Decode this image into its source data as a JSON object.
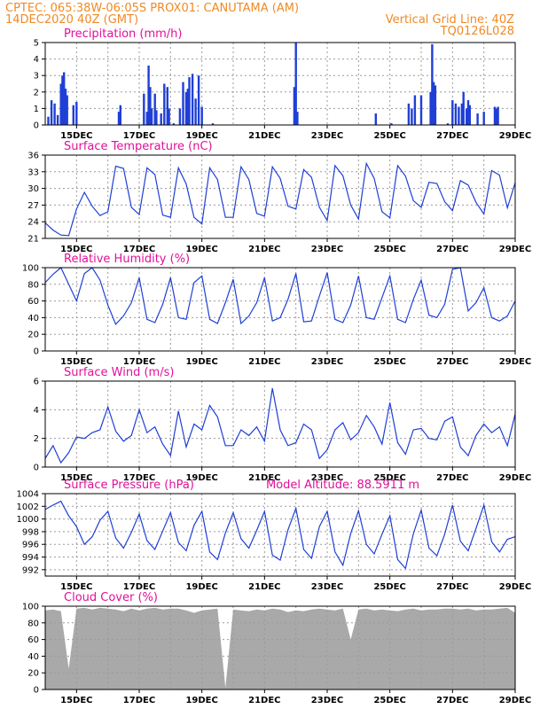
{
  "colors": {
    "header": "#f08a24",
    "title": "#e0119a",
    "line": "#1f3fd6",
    "cloud": "#a9a9a9",
    "grid": "#9a9a9a"
  },
  "header": {
    "left1": "CPTEC:   065:38W-06:05S   PROX01: CANUTAMA (AM)",
    "left2": "14DEC2020 40Z (GMT)",
    "right1": "Vertical Grid Line: 40Z",
    "right2": "TQ0126L028"
  },
  "x_days": [
    "15DEC",
    "17DEC",
    "19DEC",
    "21DEC",
    "23DEC",
    "25DEC",
    "27DEC",
    "29DEC"
  ],
  "chart_data": [
    {
      "type": "bar",
      "title": "Precipitation (mm/h)",
      "ylim": [
        0,
        5
      ],
      "yticks": [
        0,
        1,
        2,
        3,
        4,
        5
      ],
      "x_start": 14.0,
      "x_end": 29.0,
      "points": [
        [
          14.1,
          0.5
        ],
        [
          14.2,
          1.5
        ],
        [
          14.3,
          1.3
        ],
        [
          14.4,
          0.6
        ],
        [
          14.5,
          2.5
        ],
        [
          14.55,
          3.0
        ],
        [
          14.6,
          3.2
        ],
        [
          14.65,
          2.2
        ],
        [
          14.7,
          1.8
        ],
        [
          14.9,
          1.2
        ],
        [
          15.0,
          1.4
        ],
        [
          16.35,
          0.8
        ],
        [
          16.4,
          1.2
        ],
        [
          17.15,
          1.9
        ],
        [
          17.25,
          0.8
        ],
        [
          17.3,
          3.6
        ],
        [
          17.35,
          2.3
        ],
        [
          17.4,
          1.0
        ],
        [
          17.5,
          1.9
        ],
        [
          17.55,
          0.9
        ],
        [
          17.7,
          0.7
        ],
        [
          17.8,
          2.5
        ],
        [
          17.9,
          2.3
        ],
        [
          17.95,
          1.0
        ],
        [
          18.1,
          0.1
        ],
        [
          18.3,
          1.0
        ],
        [
          18.4,
          2.6
        ],
        [
          18.5,
          2.0
        ],
        [
          18.55,
          2.2
        ],
        [
          18.6,
          2.9
        ],
        [
          18.7,
          3.1
        ],
        [
          18.8,
          1.6
        ],
        [
          18.9,
          3.0
        ],
        [
          19.0,
          1.1
        ],
        [
          19.35,
          0.1
        ],
        [
          21.95,
          2.3
        ],
        [
          22.0,
          5.0
        ],
        [
          22.05,
          0.8
        ],
        [
          24.55,
          0.7
        ],
        [
          25.05,
          0.1
        ],
        [
          25.6,
          1.3
        ],
        [
          25.7,
          1.0
        ],
        [
          25.8,
          1.8
        ],
        [
          26.0,
          1.8
        ],
        [
          26.3,
          2.0
        ],
        [
          26.35,
          4.9
        ],
        [
          26.4,
          2.6
        ],
        [
          26.45,
          2.4
        ],
        [
          26.85,
          0.1
        ],
        [
          27.0,
          1.5
        ],
        [
          27.1,
          1.3
        ],
        [
          27.2,
          1.1
        ],
        [
          27.3,
          1.3
        ],
        [
          27.35,
          2.0
        ],
        [
          27.45,
          1.0
        ],
        [
          27.5,
          1.5
        ],
        [
          27.55,
          1.2
        ],
        [
          27.8,
          0.7
        ],
        [
          28.0,
          0.8
        ],
        [
          28.35,
          1.1
        ],
        [
          28.4,
          1.0
        ],
        [
          28.45,
          1.1
        ]
      ]
    },
    {
      "type": "line",
      "title": "Surface Temperature (nC)",
      "ylim": [
        21,
        36
      ],
      "yticks": [
        21,
        24,
        27,
        30,
        33,
        36
      ],
      "x": [
        14.0,
        14.25,
        14.5,
        14.75,
        15.0,
        15.25,
        15.5,
        15.75,
        16.0,
        16.25,
        16.5,
        16.75,
        17.0,
        17.25,
        17.5,
        17.75,
        18.0,
        18.25,
        18.5,
        18.75,
        19.0,
        19.25,
        19.5,
        19.75,
        20.0,
        20.25,
        20.5,
        20.75,
        21.0,
        21.25,
        21.5,
        21.75,
        22.0,
        22.25,
        22.5,
        22.75,
        23.0,
        23.25,
        23.5,
        23.75,
        24.0,
        24.25,
        24.5,
        24.75,
        25.0,
        25.25,
        25.5,
        25.75,
        26.0,
        26.25,
        26.5,
        26.75,
        27.0,
        27.25,
        27.5,
        27.75,
        28.0,
        28.25,
        28.5,
        28.75,
        29.0
      ],
      "y": [
        23.8,
        22.5,
        21.6,
        21.5,
        26.3,
        29.3,
        26.8,
        25.1,
        25.8,
        34.0,
        33.6,
        26.6,
        25.3,
        33.7,
        32.5,
        25.2,
        24.8,
        33.7,
        30.8,
        24.8,
        23.6,
        33.7,
        31.6,
        24.8,
        24.8,
        33.9,
        31.6,
        25.5,
        25.0,
        33.9,
        31.8,
        26.8,
        26.3,
        33.4,
        32.0,
        26.6,
        24.2,
        34.1,
        32.3,
        27.0,
        24.5,
        34.5,
        31.8,
        25.8,
        24.7,
        34.1,
        32.2,
        27.8,
        26.6,
        31.1,
        30.9,
        27.6,
        26.0,
        31.4,
        30.6,
        27.5,
        25.4,
        33.2,
        32.4,
        26.5,
        31.0
      ]
    },
    {
      "type": "line",
      "title": "Relative Humidity (%)",
      "ylim": [
        0,
        100
      ],
      "yticks": [
        0,
        20,
        40,
        60,
        80,
        100
      ],
      "x": [
        14.0,
        14.25,
        14.5,
        14.75,
        15.0,
        15.25,
        15.5,
        15.75,
        16.0,
        16.25,
        16.5,
        16.75,
        17.0,
        17.25,
        17.5,
        17.75,
        18.0,
        18.25,
        18.5,
        18.75,
        19.0,
        19.25,
        19.5,
        19.75,
        20.0,
        20.25,
        20.5,
        20.75,
        21.0,
        21.25,
        21.5,
        21.75,
        22.0,
        22.25,
        22.5,
        22.75,
        23.0,
        23.25,
        23.5,
        23.75,
        24.0,
        24.25,
        24.5,
        24.75,
        25.0,
        25.25,
        25.5,
        25.75,
        26.0,
        26.25,
        26.5,
        26.75,
        27.0,
        27.25,
        27.5,
        27.75,
        28.0,
        28.25,
        28.5,
        28.75,
        29.0
      ],
      "y": [
        82,
        92,
        100,
        80,
        60,
        93,
        100,
        85,
        55,
        32,
        42,
        58,
        88,
        38,
        34,
        56,
        88,
        40,
        38,
        82,
        90,
        38,
        33,
        58,
        86,
        33,
        42,
        58,
        88,
        36,
        40,
        62,
        93,
        35,
        36,
        66,
        94,
        38,
        34,
        55,
        90,
        40,
        38,
        64,
        90,
        38,
        34,
        62,
        85,
        43,
        40,
        56,
        98,
        100,
        48,
        58,
        76,
        40,
        36,
        42,
        60
      ]
    },
    {
      "type": "line",
      "title": "Surface Wind (m/s)",
      "ylim": [
        0,
        6
      ],
      "yticks": [
        0,
        2,
        4,
        6
      ],
      "x": [
        14.0,
        14.25,
        14.5,
        14.75,
        15.0,
        15.25,
        15.5,
        15.75,
        16.0,
        16.25,
        16.5,
        16.75,
        17.0,
        17.25,
        17.5,
        17.75,
        18.0,
        18.25,
        18.5,
        18.75,
        19.0,
        19.25,
        19.5,
        19.75,
        20.0,
        20.25,
        20.5,
        20.75,
        21.0,
        21.25,
        21.5,
        21.75,
        22.0,
        22.25,
        22.5,
        22.75,
        23.0,
        23.25,
        23.5,
        23.75,
        24.0,
        24.25,
        24.5,
        24.75,
        25.0,
        25.25,
        25.5,
        25.75,
        26.0,
        26.25,
        26.5,
        26.75,
        27.0,
        27.25,
        27.5,
        27.75,
        28.0,
        28.25,
        28.5,
        28.75,
        29.0
      ],
      "y": [
        0.6,
        1.5,
        0.3,
        1.0,
        2.1,
        2.0,
        2.4,
        2.6,
        4.2,
        2.5,
        1.8,
        2.2,
        4.0,
        2.4,
        2.8,
        1.6,
        0.8,
        3.9,
        1.4,
        3.0,
        2.6,
        4.3,
        3.5,
        1.5,
        1.5,
        2.6,
        2.2,
        2.8,
        1.8,
        5.5,
        2.6,
        1.5,
        1.7,
        3.0,
        2.6,
        0.6,
        1.2,
        2.6,
        3.1,
        1.9,
        2.4,
        3.6,
        2.8,
        1.6,
        4.5,
        1.7,
        0.9,
        2.6,
        2.7,
        2.0,
        1.9,
        3.2,
        3.5,
        1.4,
        0.8,
        2.2,
        3.0,
        2.4,
        2.8,
        1.5,
        3.7
      ]
    },
    {
      "type": "line",
      "title": "Surface Pressure (hPa)",
      "annotation": "Model Altitude: 88.5911 m",
      "ylim": [
        991,
        1004
      ],
      "yticks": [
        992,
        994,
        996,
        998,
        1000,
        1002,
        1004
      ],
      "x": [
        14.0,
        14.25,
        14.5,
        14.75,
        15.0,
        15.25,
        15.5,
        15.75,
        16.0,
        16.25,
        16.5,
        16.75,
        17.0,
        17.25,
        17.5,
        17.75,
        18.0,
        18.25,
        18.5,
        18.75,
        19.0,
        19.25,
        19.5,
        19.75,
        20.0,
        20.25,
        20.5,
        20.75,
        21.0,
        21.25,
        21.5,
        21.75,
        22.0,
        22.25,
        22.5,
        22.75,
        23.0,
        23.25,
        23.5,
        23.75,
        24.0,
        24.25,
        24.5,
        24.75,
        25.0,
        25.25,
        25.5,
        25.75,
        26.0,
        26.25,
        26.5,
        26.75,
        27.0,
        27.25,
        27.5,
        27.75,
        28.0,
        28.25,
        28.5,
        28.75,
        29.0
      ],
      "y": [
        1001.5,
        1002.2,
        1002.8,
        1000.5,
        998.8,
        996.0,
        997.2,
        999.8,
        1001.2,
        997.0,
        995.4,
        997.9,
        1000.8,
        996.6,
        995.2,
        998.1,
        1001.0,
        996.3,
        995.0,
        999.0,
        1001.2,
        994.8,
        993.6,
        997.8,
        1001.0,
        996.9,
        995.4,
        998.2,
        1001.2,
        994.3,
        993.5,
        998.3,
        1001.7,
        995.2,
        993.8,
        998.8,
        1001.2,
        994.8,
        992.7,
        997.7,
        1001.3,
        996.0,
        994.5,
        997.6,
        1000.5,
        993.6,
        992.2,
        997.7,
        1001.4,
        995.4,
        994.2,
        997.6,
        1002.2,
        996.5,
        995.0,
        998.5,
        1002.2,
        996.4,
        994.8,
        996.8,
        997.2
      ]
    },
    {
      "type": "area",
      "title": "Cloud Cover (%)",
      "ylim": [
        0,
        100
      ],
      "yticks": [
        0,
        20,
        40,
        60,
        80,
        100
      ],
      "x": [
        14.0,
        14.25,
        14.5,
        14.75,
        15.0,
        15.25,
        15.5,
        15.75,
        16.0,
        16.25,
        16.5,
        16.75,
        17.0,
        17.25,
        17.5,
        17.75,
        18.0,
        18.25,
        18.5,
        18.75,
        19.0,
        19.25,
        19.5,
        19.75,
        20.0,
        20.25,
        20.5,
        20.75,
        21.0,
        21.25,
        21.5,
        21.75,
        22.0,
        22.25,
        22.5,
        22.75,
        23.0,
        23.25,
        23.5,
        23.75,
        24.0,
        24.25,
        24.5,
        24.75,
        25.0,
        25.25,
        25.5,
        25.75,
        26.0,
        26.25,
        26.5,
        26.75,
        27.0,
        27.25,
        27.5,
        27.75,
        28.0,
        28.25,
        28.5,
        28.75,
        29.0
      ],
      "y": [
        95,
        96,
        94,
        25,
        97,
        98,
        96,
        98,
        97,
        96,
        94,
        97,
        95,
        97,
        98,
        96,
        97,
        97,
        95,
        92,
        95,
        96,
        97,
        2,
        96,
        95,
        94,
        96,
        95,
        97,
        96,
        93,
        95,
        94,
        96,
        97,
        96,
        95,
        97,
        60,
        96,
        97,
        95,
        96,
        95,
        94,
        96,
        97,
        95,
        96,
        96,
        97,
        97,
        96,
        97,
        95,
        96,
        96,
        97,
        98,
        92
      ]
    }
  ]
}
